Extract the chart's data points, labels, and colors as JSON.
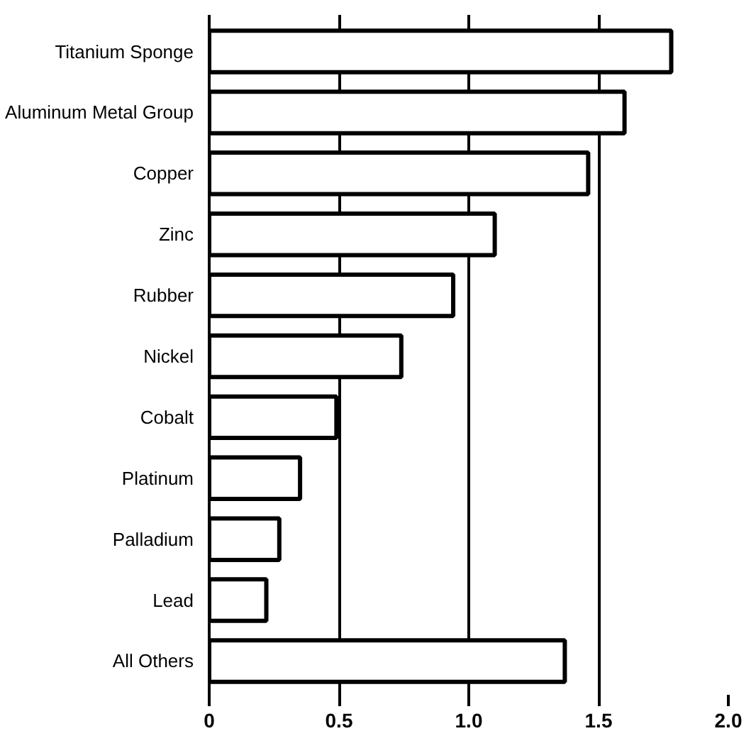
{
  "chart_data": {
    "type": "bar",
    "orientation": "horizontal",
    "categories": [
      "Titanium Sponge",
      "Aluminum Metal Group",
      "Copper",
      "Zinc",
      "Rubber",
      "Nickel",
      "Cobalt",
      "Platinum",
      "Palladium",
      "Lead",
      "All Others"
    ],
    "values": [
      1.78,
      1.6,
      1.46,
      1.1,
      0.94,
      0.74,
      0.49,
      0.35,
      0.27,
      0.22,
      1.37
    ],
    "color": "#ffffff",
    "xlim": [
      0,
      2.0
    ],
    "xticks": [
      0,
      0.5,
      {
        "value": 1.0,
        "label": "1.0"
      },
      1.5,
      {
        "value": 2.0,
        "label": "2.0"
      }
    ],
    "grid": "x"
  }
}
